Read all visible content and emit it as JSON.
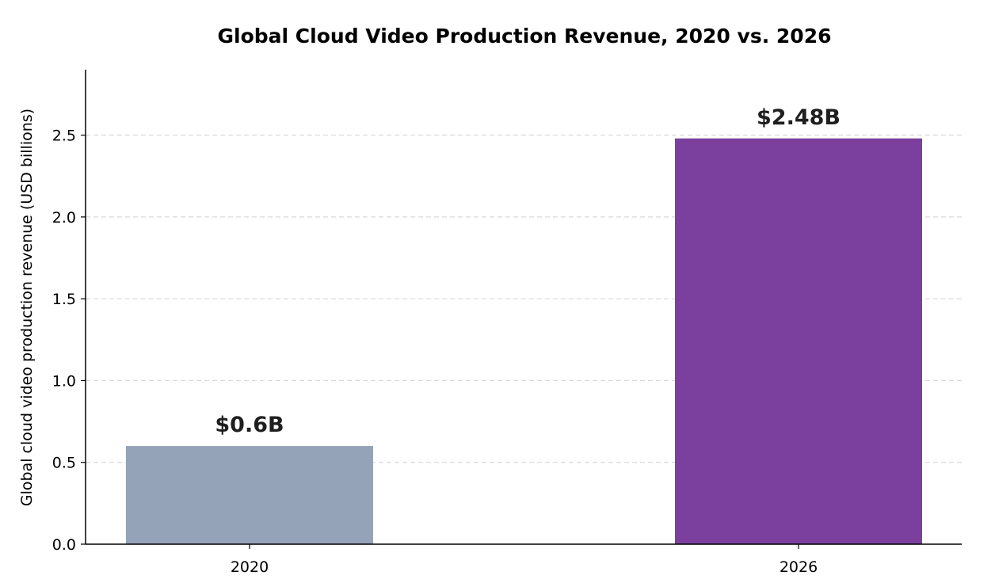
{
  "chart_data": {
    "type": "bar",
    "title": "Global Cloud Video Production Revenue, 2020 vs. 2026",
    "xlabel": "",
    "ylabel": "Global cloud video production revenue (USD billions)",
    "categories": [
      "2020",
      "2026"
    ],
    "values": [
      0.6,
      2.48
    ],
    "value_labels": [
      "$0.6B",
      "$2.48B"
    ],
    "colors": [
      "#94a3b8",
      "#7b3f9e"
    ],
    "ylim": [
      0,
      2.9
    ],
    "yticks": [
      0.0,
      0.5,
      1.0,
      1.5,
      2.0,
      2.5
    ],
    "ytick_labels": [
      "0.0",
      "0.5",
      "1.0",
      "1.5",
      "2.0",
      "2.5"
    ],
    "grid": "horizontal-dashed",
    "legend": "none"
  }
}
